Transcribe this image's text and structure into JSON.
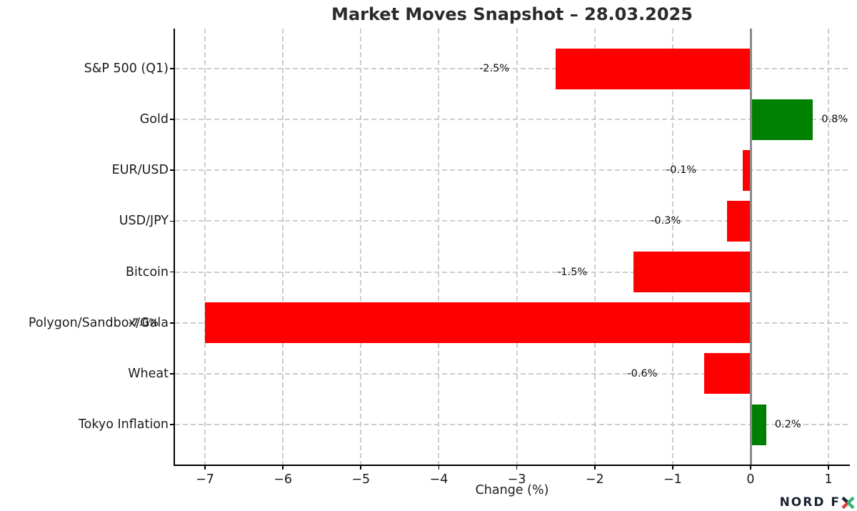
{
  "chart_data": {
    "type": "bar",
    "orientation": "horizontal",
    "title": "Market Moves Snapshot – 28.03.2025",
    "xlabel": "Change (%)",
    "categories": [
      "S&P 500 (Q1)",
      "Gold",
      "EUR/USD",
      "USD/JPY",
      "Bitcoin",
      "Polygon/Sandbox/Gala",
      "Wheat",
      "Tokyo Inflation"
    ],
    "values": [
      -2.5,
      0.8,
      -0.1,
      -0.3,
      -1.5,
      -7.0,
      -0.6,
      0.2
    ],
    "bar_labels": [
      "-2.5%",
      "0.8%",
      "-0.1%",
      "-0.3%",
      "-1.5%",
      "-7.0%",
      "-0.6%",
      "0.2%"
    ],
    "xlim": [
      -7.39,
      1.27
    ],
    "xticks": [
      -7,
      -6,
      -5,
      -4,
      -3,
      -2,
      -1,
      0,
      1
    ],
    "xtick_labels": [
      "−7",
      "−6",
      "−5",
      "−4",
      "−3",
      "−2",
      "−1",
      "0",
      "1"
    ],
    "grid": true,
    "legend": "none",
    "colors": {
      "negative_bar": "#ff0000",
      "positive_bar": "#008000",
      "zero_line": "#8a8a8a",
      "gridline": "#cdcdcd",
      "title_text": "#2b2b2b"
    }
  },
  "branding": {
    "name": "NORD FX",
    "prefix": "NORD F",
    "x_colors": {
      "dark": "#1b2130",
      "red": "#e03c3c",
      "green": "#33b673"
    }
  }
}
